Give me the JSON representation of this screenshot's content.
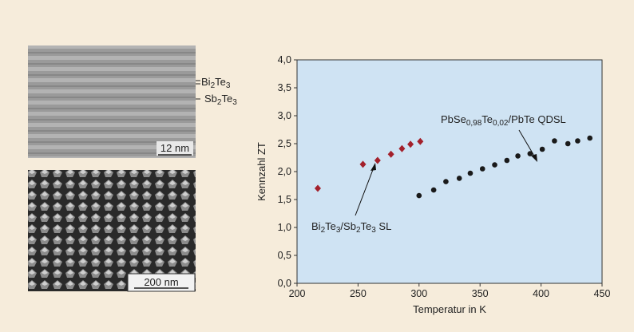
{
  "chart_data": {
    "type": "scatter",
    "y_label": "Kennzahl ZT",
    "x_label": "Temperatur in K",
    "xlim": [
      200,
      450
    ],
    "xticks": [
      200,
      250,
      300,
      350,
      400,
      450
    ],
    "ylim": [
      0,
      4
    ],
    "yticks": [
      {
        "value": 0,
        "label": "0,0"
      },
      {
        "value": 0.5,
        "label": "0,5"
      },
      {
        "value": 1,
        "label": "1,0"
      },
      {
        "value": 1.5,
        "label": "1,5"
      },
      {
        "value": 2,
        "label": "2,0"
      },
      {
        "value": 2.5,
        "label": "2,5"
      },
      {
        "value": 3,
        "label": "3,0"
      },
      {
        "value": 3.5,
        "label": "3,5"
      },
      {
        "value": 4,
        "label": "4,0"
      }
    ],
    "background": "#cfe3f3",
    "series": [
      {
        "color": "#a3202b",
        "marker": "diamond",
        "x": [
          217,
          254,
          266,
          277,
          286,
          293,
          301
        ],
        "values": [
          1.7,
          2.13,
          2.2,
          2.31,
          2.41,
          2.49,
          2.54
        ]
      },
      {
        "color": "#1a1a1a",
        "marker": "circle",
        "x": [
          300,
          312,
          322,
          333,
          342,
          352,
          362,
          372,
          381,
          391,
          401,
          411,
          422,
          430,
          440
        ],
        "values": [
          1.57,
          1.67,
          1.82,
          1.88,
          1.97,
          2.05,
          2.12,
          2.2,
          2.28,
          2.32,
          2.4,
          2.55,
          2.5,
          2.55,
          2.6
        ]
      }
    ],
    "annotations": [
      {
        "parts": [
          "Bi",
          "2",
          "Te",
          "3",
          "/Sb",
          "2",
          "Te",
          "3",
          " SL"
        ]
      },
      {
        "parts": [
          "PbSe",
          "0,98",
          "Te",
          "0,02",
          "/PbTe QDSL"
        ]
      }
    ]
  },
  "micrographs": {
    "top": {
      "layer_labels": [
        [
          "Bi",
          "2",
          "Te",
          "3"
        ],
        [
          "Sb",
          "2",
          "Te",
          "3"
        ]
      ],
      "scale_bar": "12 nm"
    },
    "bottom": {
      "scale_bar": "200 nm"
    }
  }
}
